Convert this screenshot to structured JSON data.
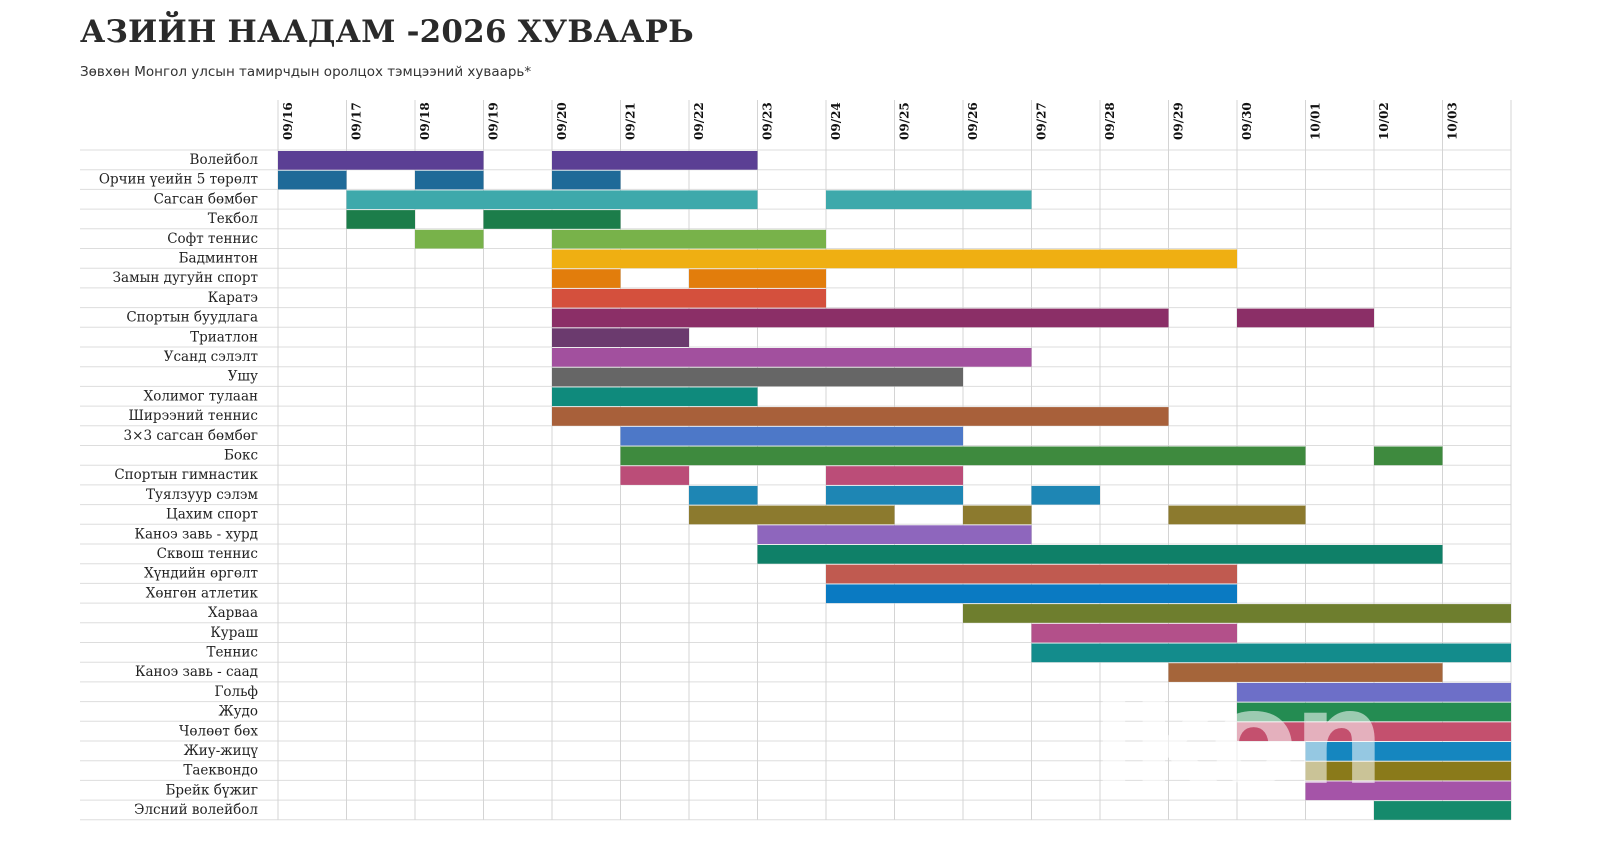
{
  "header": {
    "title": "АЗИЙН НААДАМ -2026 ХУВААРЬ",
    "subtitle": "Зөвхөн Монгол улсын тамирчдын оролцох тэмцээний хуваарь*"
  },
  "watermark": {
    "text": "ikon"
  },
  "chart_data": {
    "type": "gantt",
    "dates": [
      "09/16",
      "09/17",
      "09/18",
      "09/19",
      "09/20",
      "09/21",
      "09/22",
      "09/23",
      "09/24",
      "09/25",
      "09/26",
      "09/27",
      "09/28",
      "09/29",
      "09/30",
      "10/01",
      "10/02",
      "10/03"
    ],
    "rows": [
      {
        "name": "Волейбол",
        "color": "#5b3f94",
        "days": [
          0,
          1,
          2,
          4,
          5,
          6
        ]
      },
      {
        "name": "Орчин үеийн 5 төрөлт",
        "color": "#1f6a98",
        "days": [
          0,
          2,
          4
        ]
      },
      {
        "name": "Сагсан бөмбөг",
        "color": "#3ea9ab",
        "days": [
          1,
          2,
          3,
          4,
          5,
          6,
          8,
          9,
          10
        ]
      },
      {
        "name": "Текбол",
        "color": "#1c7d4a",
        "days": [
          1,
          3,
          4
        ]
      },
      {
        "name": "Софт теннис",
        "color": "#78b24a",
        "days": [
          2,
          4,
          5,
          6,
          7
        ]
      },
      {
        "name": "Бадминтон",
        "color": "#efaf12",
        "days": [
          4,
          5,
          6,
          7,
          8,
          9,
          10,
          11,
          12,
          13
        ]
      },
      {
        "name": "Замын дугуйн спорт",
        "color": "#e27d0c",
        "days": [
          4,
          6,
          7
        ]
      },
      {
        "name": "Каратэ",
        "color": "#d4503d",
        "days": [
          4,
          5,
          6,
          7
        ]
      },
      {
        "name": "Спортын буудлага",
        "color": "#8b2f67",
        "days": [
          4,
          5,
          6,
          7,
          8,
          9,
          10,
          11,
          12,
          14,
          15
        ]
      },
      {
        "name": "Триатлон",
        "color": "#6b3a6e",
        "days": [
          4,
          5
        ]
      },
      {
        "name": "Усанд сэлэлт",
        "color": "#a2509e",
        "days": [
          4,
          5,
          6,
          7,
          8,
          9,
          10
        ]
      },
      {
        "name": "Ушу",
        "color": "#666666",
        "days": [
          4,
          5,
          6,
          7,
          8,
          9
        ]
      },
      {
        "name": "Холимог тулаан",
        "color": "#0f8a7c",
        "days": [
          4,
          5,
          6
        ]
      },
      {
        "name": "Ширээний теннис",
        "color": "#a8603a",
        "days": [
          4,
          5,
          6,
          7,
          8,
          9,
          10,
          11,
          12
        ]
      },
      {
        "name": "3×3 сагсан бөмбөг",
        "color": "#4d78c8",
        "days": [
          5,
          6,
          7,
          8,
          9
        ]
      },
      {
        "name": "Бокс",
        "color": "#3e8a3e",
        "days": [
          5,
          6,
          7,
          8,
          9,
          10,
          11,
          12,
          13,
          14,
          16
        ]
      },
      {
        "name": "Спортын гимнастик",
        "color": "#bb4d78",
        "days": [
          5,
          8,
          9
        ]
      },
      {
        "name": "Туялзуур сэлэм",
        "color": "#1e86b4",
        "days": [
          6,
          8,
          9,
          11
        ]
      },
      {
        "name": "Цахим спорт",
        "color": "#8c7a2e",
        "days": [
          6,
          7,
          8,
          10,
          13,
          14
        ]
      },
      {
        "name": "Каноэ завь - хурд",
        "color": "#8e66bd",
        "days": [
          7,
          8,
          9,
          10
        ]
      },
      {
        "name": "Сквош теннис",
        "color": "#0f8068",
        "days": [
          7,
          8,
          9,
          10,
          11,
          12,
          13,
          14,
          15,
          16
        ]
      },
      {
        "name": "Хүндийн өргөлт",
        "color": "#c05a50",
        "days": [
          8,
          9,
          10,
          11,
          12,
          13
        ]
      },
      {
        "name": "Хөнгөн атлетик",
        "color": "#0a7ac2",
        "days": [
          8,
          9,
          10,
          11,
          12,
          13
        ]
      },
      {
        "name": "Харваа",
        "color": "#6e7e2e",
        "days": [
          10,
          11,
          12,
          13,
          14,
          15,
          16,
          17
        ]
      },
      {
        "name": "Кураш",
        "color": "#b3508a",
        "days": [
          11,
          12,
          13
        ]
      },
      {
        "name": "Теннис",
        "color": "#138c8c",
        "days": [
          11,
          12,
          13,
          14,
          15,
          16,
          17
        ]
      },
      {
        "name": "Каноэ завь - саад",
        "color": "#a5653a",
        "days": [
          13,
          14,
          15,
          16
        ]
      },
      {
        "name": "Гольф",
        "color": "#6d6fc8",
        "days": [
          14,
          15,
          16,
          17
        ]
      },
      {
        "name": "Жудо",
        "color": "#248c52",
        "days": [
          14,
          15,
          16,
          17
        ]
      },
      {
        "name": "Чөлөөт бөх",
        "color": "#c4506e",
        "days": [
          14,
          15,
          16,
          17
        ]
      },
      {
        "name": "Жиу-жицү",
        "color": "#1586bf",
        "days": [
          15,
          16,
          17
        ]
      },
      {
        "name": "Таеквондо",
        "color": "#8a7a1a",
        "days": [
          15,
          16,
          17
        ]
      },
      {
        "name": "Брейк бүжиг",
        "color": "#a554a8",
        "days": [
          15,
          16,
          17
        ]
      },
      {
        "name": "Элсний волейбол",
        "color": "#158a6c",
        "days": [
          16,
          17
        ]
      }
    ]
  }
}
